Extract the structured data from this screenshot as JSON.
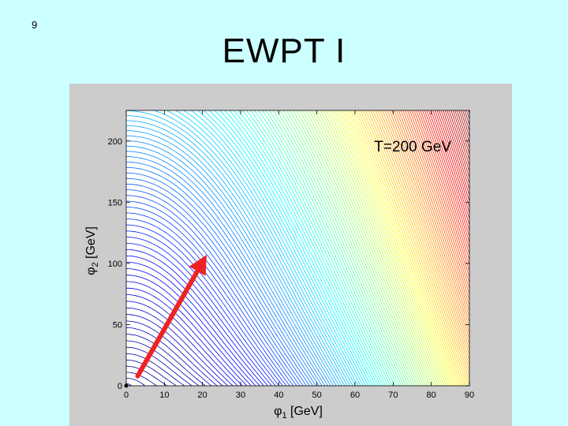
{
  "slide": {
    "number": "9",
    "title": "EWPT   I"
  },
  "chart_data": {
    "type": "contour",
    "annotation": "T=200 GeV",
    "xlabel": {
      "symbol": "φ",
      "sub": "1",
      "unit": " [GeV]"
    },
    "ylabel": {
      "symbol": "φ",
      "sub": "2",
      "unit": " [GeV]"
    },
    "xlim": [
      0,
      90
    ],
    "ylim": [
      0,
      225
    ],
    "x_ticks": [
      0,
      10,
      20,
      30,
      40,
      50,
      60,
      70,
      80,
      90
    ],
    "y_ticks": [
      0,
      50,
      100,
      150,
      200
    ],
    "grid": false,
    "minimum": {
      "x": 0,
      "y": 0
    },
    "arrow": {
      "from": {
        "x": 3,
        "y": 8
      },
      "to": {
        "x": 20,
        "y": 101
      },
      "color": "#ee2222"
    },
    "colormap": "jet",
    "contour_levels": 150
  }
}
